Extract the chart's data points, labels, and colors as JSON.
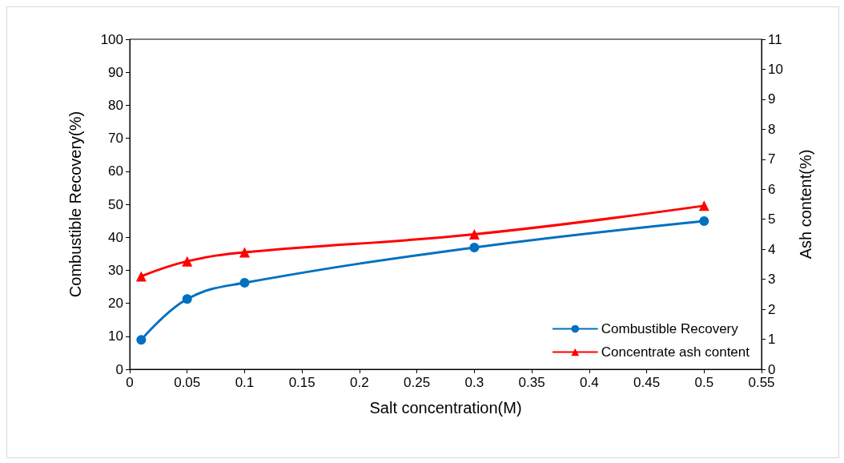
{
  "chart_data": {
    "type": "line",
    "xlabel": "Salt concentration(M)",
    "ylabel": "Combustible Recovery(%)",
    "y2label": "Ash content(%)",
    "xlim": [
      0,
      0.55
    ],
    "xticks": [
      0,
      0.05,
      0.1,
      0.15,
      0.2,
      0.25,
      0.3,
      0.35,
      0.4,
      0.45,
      0.5,
      0.55
    ],
    "ylim": [
      0,
      100
    ],
    "yticks": [
      0,
      10,
      20,
      30,
      40,
      50,
      60,
      70,
      80,
      90,
      100
    ],
    "y2lim": [
      0,
      11
    ],
    "y2ticks": [
      0,
      1,
      2,
      3,
      4,
      5,
      6,
      7,
      8,
      9,
      10,
      11
    ],
    "x": [
      0.01,
      0.05,
      0.1,
      0.3,
      0.5
    ],
    "series": [
      {
        "name": "Combustible Recovery",
        "color": "#0070c0",
        "marker": "circle",
        "values": [
          8.9,
          21.3,
          26.2,
          36.9,
          44.9
        ]
      },
      {
        "name": "Concentrate ash content",
        "color": "#ff0000",
        "marker": "triangle",
        "axis": "y2",
        "values": [
          3.1,
          3.6,
          3.9,
          4.5,
          5.45
        ]
      }
    ],
    "legend": "bottom right",
    "grid": false,
    "line_style": "solid"
  }
}
